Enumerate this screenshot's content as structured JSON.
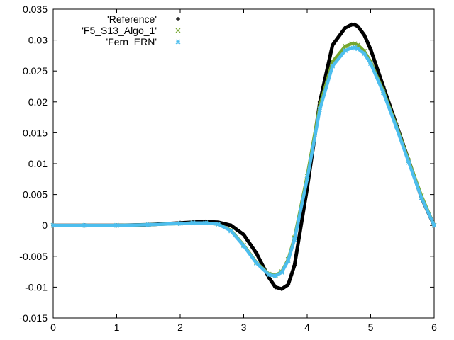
{
  "chart_data": {
    "type": "scatter",
    "title": "",
    "xlabel": "",
    "ylabel": "",
    "xlim": [
      0,
      6
    ],
    "ylim": [
      -0.015,
      0.035
    ],
    "grid": false,
    "legend_position": "top-left",
    "x_ticks": [
      "0",
      "1",
      "2",
      "3",
      "4",
      "5",
      "6"
    ],
    "y_ticks": [
      "0.035",
      "0.03",
      "0.025",
      "0.02",
      "0.015",
      "0.01",
      "0.005",
      "0",
      "-0.005",
      "-0.01",
      "-0.015"
    ],
    "series": [
      {
        "name": "'Reference'",
        "marker": "plus",
        "color": "#000000",
        "x": [
          0,
          0.5,
          1.0,
          1.5,
          2.0,
          2.2,
          2.4,
          2.6,
          2.8,
          3.0,
          3.2,
          3.4,
          3.5,
          3.6,
          3.7,
          3.8,
          4.0,
          4.2,
          4.4,
          4.6,
          4.7,
          4.75,
          4.8,
          4.9,
          5.0,
          5.2,
          5.4,
          5.6,
          5.8,
          6.0
        ],
        "y": [
          0,
          0,
          0,
          0.0001,
          0.0004,
          0.0005,
          0.0006,
          0.0005,
          0.0,
          -0.0015,
          -0.0045,
          -0.0085,
          -0.01,
          -0.0103,
          -0.0096,
          -0.0065,
          0.006,
          0.02,
          0.0292,
          0.032,
          0.0325,
          0.0325,
          0.0322,
          0.0308,
          0.0285,
          0.0225,
          0.0165,
          0.0105,
          0.0045,
          0.0
        ]
      },
      {
        "name": "'F5_S13_Algo_1'",
        "marker": "cross",
        "color": "#76a72f",
        "x": [
          0,
          0.5,
          1.0,
          1.5,
          2.0,
          2.2,
          2.4,
          2.6,
          2.8,
          3.0,
          3.2,
          3.4,
          3.5,
          3.6,
          3.7,
          3.8,
          4.0,
          4.2,
          4.4,
          4.6,
          4.7,
          4.75,
          4.8,
          4.9,
          5.0,
          5.2,
          5.4,
          5.6,
          5.8,
          6.0
        ],
        "y": [
          0,
          0,
          0,
          0.0001,
          0.0003,
          0.0004,
          0.0004,
          0.0002,
          -0.0008,
          -0.0032,
          -0.006,
          -0.0079,
          -0.0081,
          -0.0075,
          -0.0055,
          -0.002,
          0.008,
          0.0195,
          0.0265,
          0.029,
          0.0294,
          0.0294,
          0.0292,
          0.0282,
          0.0265,
          0.0218,
          0.0163,
          0.0105,
          0.0048,
          0.0
        ]
      },
      {
        "name": "'Fern_ERN'",
        "marker": "star",
        "color": "#4dbeee",
        "x": [
          0,
          0.5,
          1.0,
          1.5,
          2.0,
          2.2,
          2.4,
          2.6,
          2.8,
          3.0,
          3.2,
          3.4,
          3.5,
          3.6,
          3.7,
          3.8,
          4.0,
          4.2,
          4.4,
          4.6,
          4.7,
          4.75,
          4.8,
          4.9,
          5.0,
          5.2,
          5.4,
          5.6,
          5.8,
          6.0
        ],
        "y": [
          0,
          0,
          0,
          0.0001,
          0.0003,
          0.0004,
          0.0004,
          0.0002,
          -0.0009,
          -0.0033,
          -0.0061,
          -0.008,
          -0.0082,
          -0.0076,
          -0.0057,
          -0.0023,
          0.0075,
          0.0188,
          0.0258,
          0.0283,
          0.0287,
          0.0288,
          0.0286,
          0.0278,
          0.0262,
          0.0215,
          0.016,
          0.0102,
          0.0045,
          0.0
        ]
      }
    ]
  }
}
